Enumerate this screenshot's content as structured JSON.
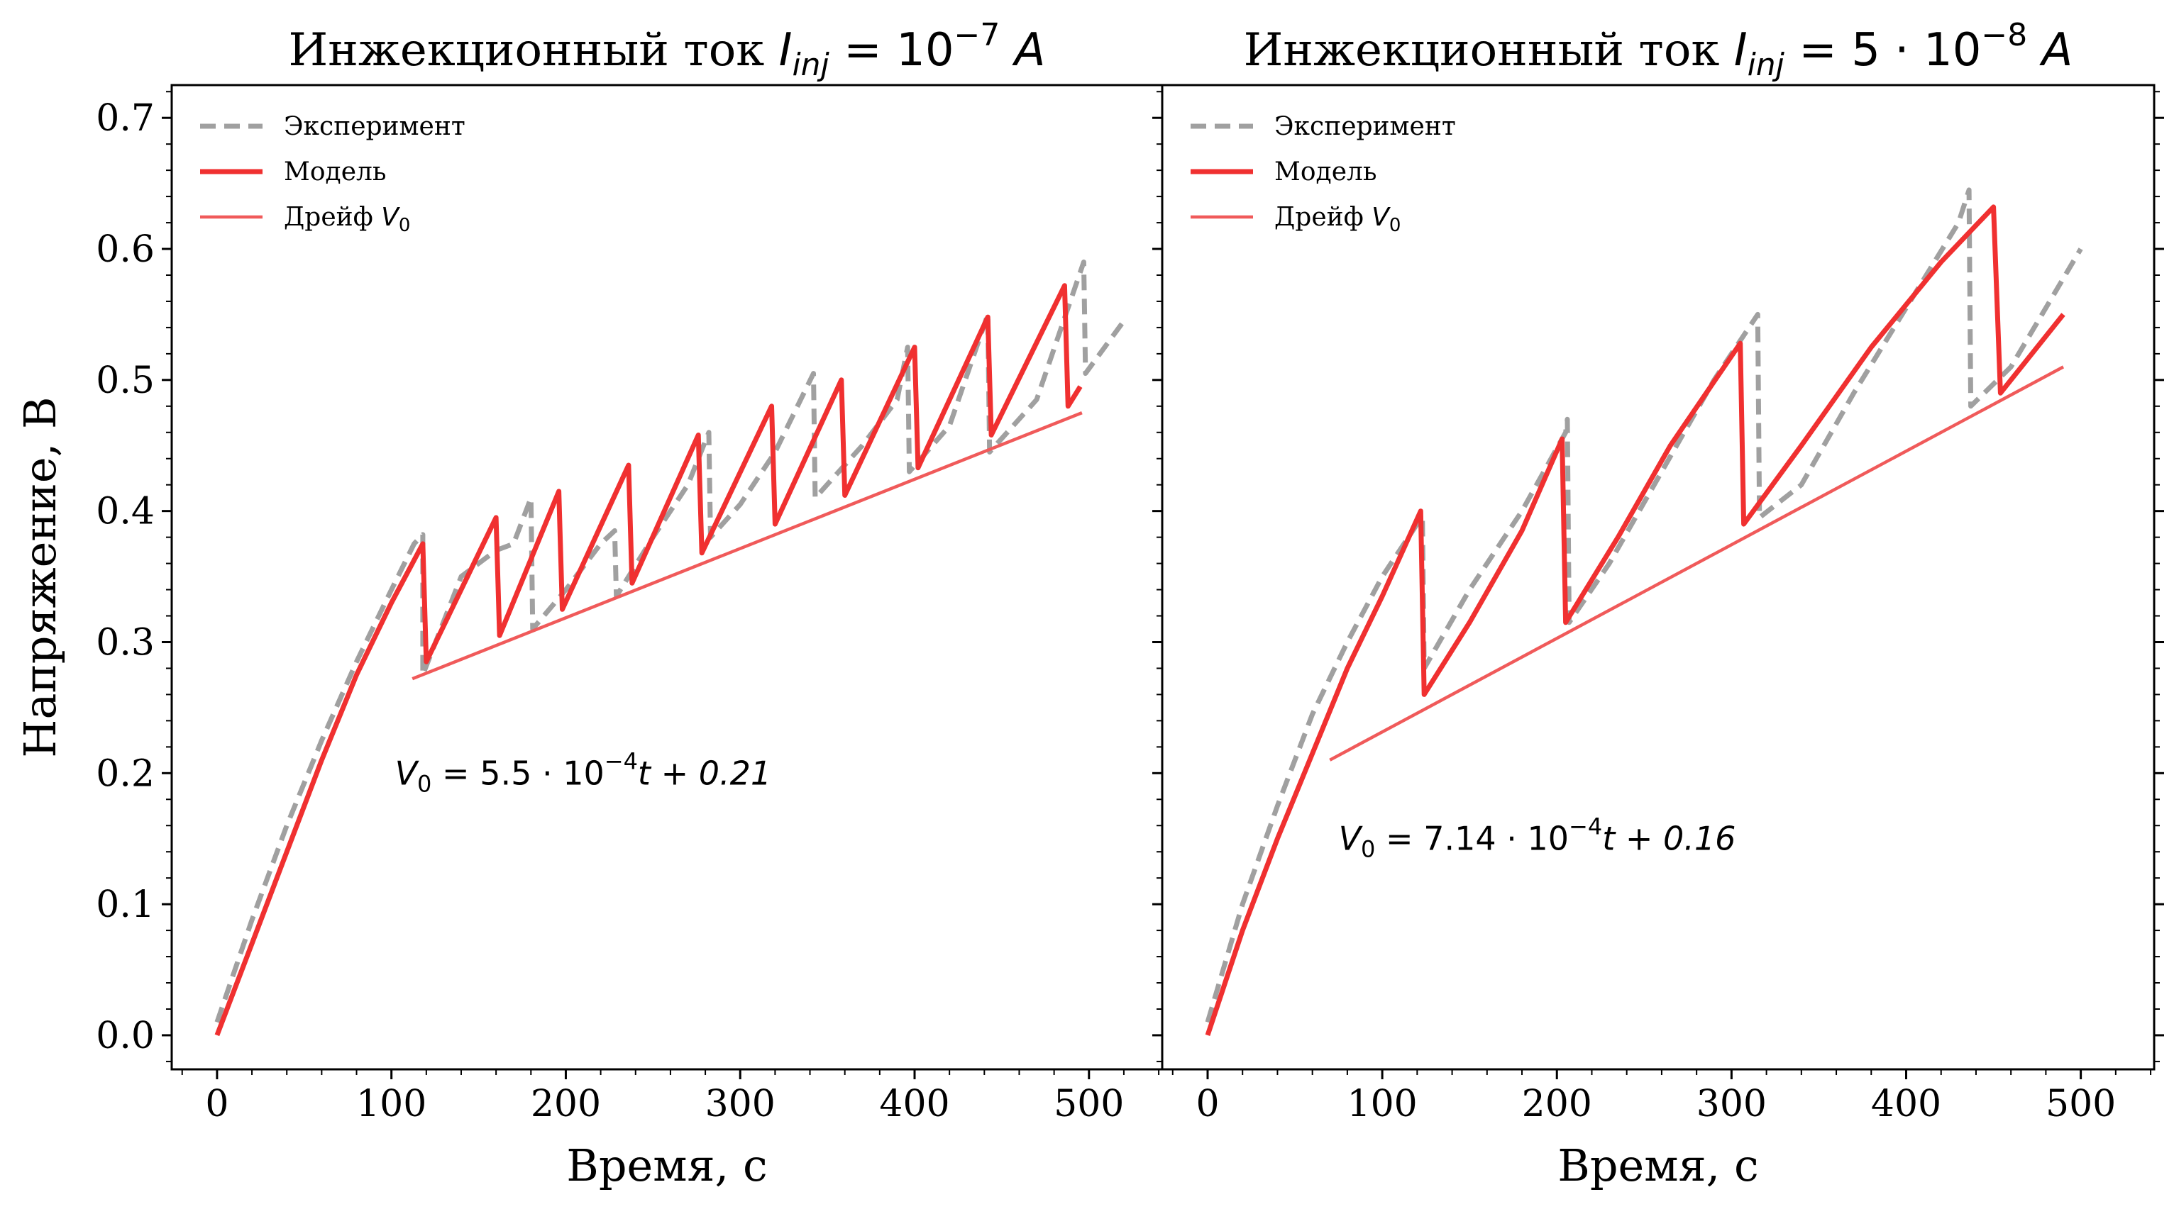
{
  "chart_data": [
    {
      "type": "line",
      "title_prefix": "Инжекционный ток ",
      "title_math": "I",
      "title_math_sub": "inj",
      "title_math_rest": " = 10",
      "title_math_sup": "−7",
      "title_math_unit": " A",
      "xlabel": "Время, с",
      "ylabel": "Напряжение, В",
      "xlim": [
        -26,
        542
      ],
      "ylim": [
        -0.026,
        0.725
      ],
      "xticks": [
        "0",
        "100",
        "200",
        "300",
        "400",
        "500"
      ],
      "yticks": [
        "0.0",
        "0.1",
        "0.2",
        "0.3",
        "0.4",
        "0.5",
        "0.6",
        "0.7"
      ],
      "legend": {
        "position": "upper-left",
        "entries": [
          {
            "label": "Эксперимент",
            "style": "dashed",
            "color": "#a0a0a0"
          },
          {
            "label": "Модель",
            "style": "solid-thick",
            "color": "#f03030"
          },
          {
            "label": "Дрейф ",
            "label_math": "V",
            "label_math_sub": "0",
            "style": "solid-thin",
            "color": "#f05a5a"
          }
        ]
      },
      "annotation": {
        "text_math": "V",
        "sub": "0",
        "text_rest": " = 5.5 · 10",
        "sup": "−4",
        "text_end": "t + 0.21",
        "at": [
          102,
          0.2
        ]
      },
      "series": [
        {
          "name": "Эксперимент",
          "color": "#a0a0a0",
          "points": [
            [
              0,
              0.01
            ],
            [
              20,
              0.088
            ],
            [
              40,
              0.16
            ],
            [
              60,
              0.225
            ],
            [
              80,
              0.285
            ],
            [
              100,
              0.34
            ],
            [
              113,
              0.375
            ],
            [
              118,
              0.382
            ],
            [
              118,
              0.275
            ],
            [
              140,
              0.35
            ],
            [
              160,
              0.37
            ],
            [
              170,
              0.375
            ],
            [
              180,
              0.41
            ],
            [
              181,
              0.31
            ],
            [
              200,
              0.34
            ],
            [
              220,
              0.375
            ],
            [
              228,
              0.385
            ],
            [
              229,
              0.335
            ],
            [
              250,
              0.38
            ],
            [
              270,
              0.42
            ],
            [
              282,
              0.46
            ],
            [
              283,
              0.38
            ],
            [
              300,
              0.405
            ],
            [
              320,
              0.445
            ],
            [
              342,
              0.505
            ],
            [
              343,
              0.41
            ],
            [
              370,
              0.45
            ],
            [
              390,
              0.485
            ],
            [
              396,
              0.525
            ],
            [
              397,
              0.43
            ],
            [
              420,
              0.465
            ],
            [
              442,
              0.55
            ],
            [
              443,
              0.445
            ],
            [
              470,
              0.485
            ],
            [
              497,
              0.59
            ],
            [
              498,
              0.505
            ],
            [
              520,
              0.545
            ]
          ]
        },
        {
          "name": "Модель",
          "color": "#f03030",
          "points": [
            [
              0,
              0
            ],
            [
              20,
              0.07
            ],
            [
              40,
              0.14
            ],
            [
              60,
              0.21
            ],
            [
              80,
              0.275
            ],
            [
              100,
              0.33
            ],
            [
              118,
              0.375
            ],
            [
              120,
              0.285
            ],
            [
              160,
              0.395
            ],
            [
              162,
              0.305
            ],
            [
              196,
              0.415
            ],
            [
              198,
              0.325
            ],
            [
              236,
              0.435
            ],
            [
              238,
              0.345
            ],
            [
              276,
              0.458
            ],
            [
              278,
              0.368
            ],
            [
              318,
              0.48
            ],
            [
              320,
              0.39
            ],
            [
              358,
              0.5
            ],
            [
              360,
              0.412
            ],
            [
              400,
              0.525
            ],
            [
              402,
              0.433
            ],
            [
              442,
              0.548
            ],
            [
              444,
              0.458
            ],
            [
              486,
              0.572
            ],
            [
              488,
              0.48
            ],
            [
              495,
              0.495
            ]
          ]
        },
        {
          "name": "Дрейф V0",
          "color": "#f05a5a",
          "points": [
            [
              112,
              0.272
            ],
            [
              496,
              0.475
            ]
          ]
        }
      ]
    },
    {
      "type": "line",
      "title_prefix": "Инжекционный ток ",
      "title_math": "I",
      "title_math_sub": "inj",
      "title_math_rest": " = 5 · 10",
      "title_math_sup": "−8",
      "title_math_unit": " A",
      "xlabel": "Время, с",
      "ylabel": "",
      "xlim": [
        -26,
        542
      ],
      "ylim": [
        -0.026,
        0.725
      ],
      "xticks": [
        "0",
        "100",
        "200",
        "300",
        "400",
        "500"
      ],
      "yticks": [],
      "legend": {
        "position": "upper-left",
        "entries": [
          {
            "label": "Эксперимент",
            "style": "dashed",
            "color": "#a0a0a0"
          },
          {
            "label": "Модель",
            "style": "solid-thick",
            "color": "#f03030"
          },
          {
            "label": "Дрейф ",
            "label_math": "V",
            "label_math_sub": "0",
            "style": "solid-thin",
            "color": "#f05a5a"
          }
        ]
      },
      "annotation": {
        "text_math": "V",
        "sub": "0",
        "text_rest": " = 7.14 · 10",
        "sup": "−4",
        "text_end": "t + 0.16",
        "at": [
          75,
          0.15
        ]
      },
      "series": [
        {
          "name": "Эксперимент",
          "color": "#a0a0a0",
          "points": [
            [
              0,
              0.01
            ],
            [
              20,
              0.1
            ],
            [
              40,
              0.175
            ],
            [
              60,
              0.245
            ],
            [
              80,
              0.3
            ],
            [
              100,
              0.35
            ],
            [
              120,
              0.39
            ],
            [
              123,
              0.395
            ],
            [
              124,
              0.28
            ],
            [
              150,
              0.34
            ],
            [
              180,
              0.4
            ],
            [
              205,
              0.46
            ],
            [
              206,
              0.47
            ],
            [
              207,
              0.315
            ],
            [
              230,
              0.36
            ],
            [
              260,
              0.43
            ],
            [
              290,
              0.5
            ],
            [
              315,
              0.55
            ],
            [
              316,
              0.395
            ],
            [
              340,
              0.42
            ],
            [
              370,
              0.49
            ],
            [
              400,
              0.555
            ],
            [
              430,
              0.62
            ],
            [
              436,
              0.645
            ],
            [
              437,
              0.48
            ],
            [
              460,
              0.51
            ],
            [
              500,
              0.6
            ]
          ]
        },
        {
          "name": "Модель",
          "color": "#f03030",
          "points": [
            [
              0,
              0
            ],
            [
              20,
              0.08
            ],
            [
              40,
              0.15
            ],
            [
              60,
              0.215
            ],
            [
              80,
              0.28
            ],
            [
              100,
              0.335
            ],
            [
              122,
              0.4
            ],
            [
              124,
              0.26
            ],
            [
              150,
              0.315
            ],
            [
              180,
              0.385
            ],
            [
              203,
              0.455
            ],
            [
              205,
              0.315
            ],
            [
              235,
              0.38
            ],
            [
              265,
              0.45
            ],
            [
              305,
              0.528
            ],
            [
              307,
              0.39
            ],
            [
              340,
              0.45
            ],
            [
              380,
              0.525
            ],
            [
              420,
              0.59
            ],
            [
              450,
              0.632
            ],
            [
              454,
              0.49
            ],
            [
              490,
              0.55
            ]
          ]
        },
        {
          "name": "Дрейф V0",
          "color": "#f05a5a",
          "points": [
            [
              70,
              0.21
            ],
            [
              490,
              0.51
            ]
          ]
        }
      ]
    }
  ]
}
